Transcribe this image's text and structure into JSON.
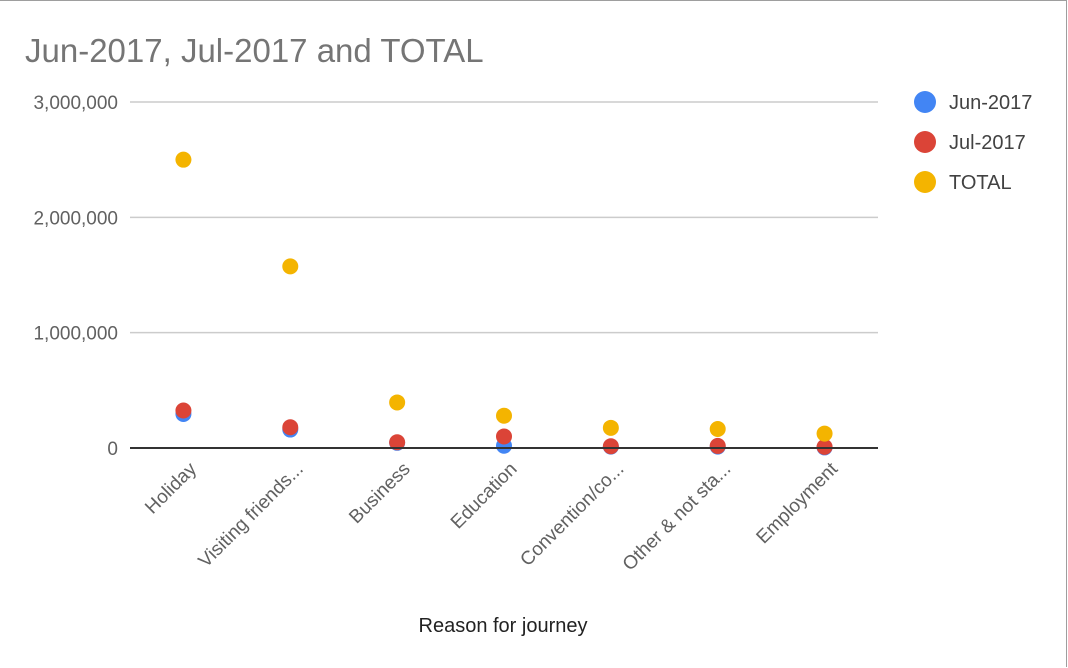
{
  "chart_data": {
    "type": "scatter",
    "title": "Jun-2017, Jul-2017 and TOTAL",
    "xlabel": "Reason for journey",
    "ylabel": "",
    "categories": [
      "Holiday",
      "Visiting friends...",
      "Business",
      "Education",
      "Convention/co...",
      "Other & not sta...",
      "Employment"
    ],
    "ylim": [
      0,
      3000000
    ],
    "yticks": [
      0,
      1000000,
      2000000,
      3000000
    ],
    "ytick_labels": [
      "0",
      "1,000,000",
      "2,000,000",
      "3,000,000"
    ],
    "grid": true,
    "legend_position": "right",
    "series": [
      {
        "name": "Jun-2017",
        "color": "#4285f4",
        "values": [
          295000,
          160000,
          45000,
          20000,
          12000,
          12000,
          5000
        ]
      },
      {
        "name": "Jul-2017",
        "color": "#db4437",
        "values": [
          325000,
          180000,
          50000,
          100000,
          15000,
          18000,
          10000
        ]
      },
      {
        "name": "TOTAL",
        "color": "#f4b400",
        "values": [
          2500000,
          1575000,
          395000,
          280000,
          175000,
          165000,
          125000
        ]
      }
    ]
  }
}
